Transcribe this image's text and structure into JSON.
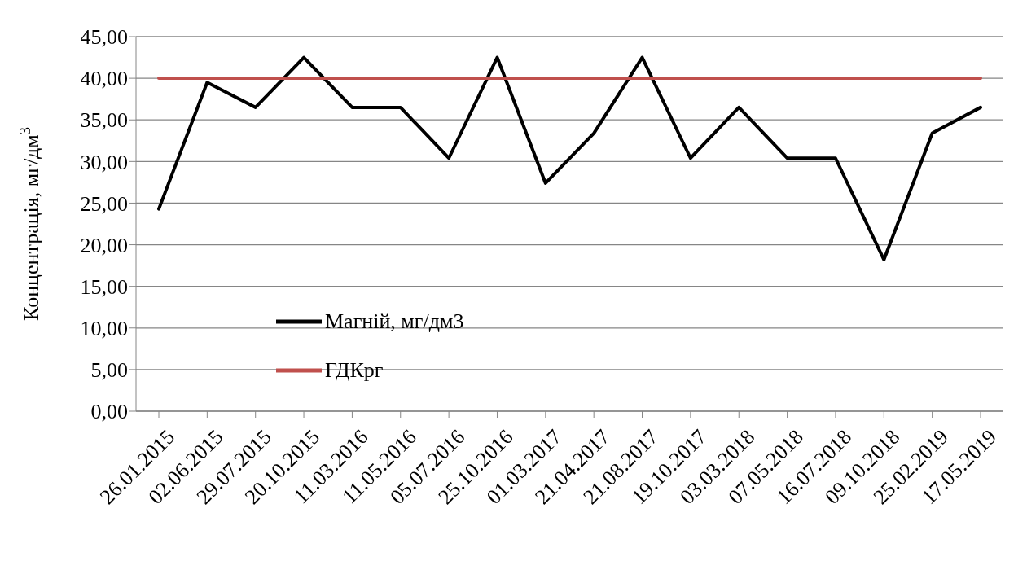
{
  "chart_data": {
    "type": "line",
    "ylabel": "Концентрація, мг/дм$^{3}$",
    "categories": [
      "26.01.2015",
      "02.06.2015",
      "29.07.2015",
      "20.10.2015",
      "11.03.2016",
      "11.05.2016",
      "05.07.2016",
      "25.10.2016",
      "01.03.2017",
      "21.04.2017",
      "21.08.2017",
      "19.10.2017",
      "03.03.2018",
      "07.05.2018",
      "16.07.2018",
      "09.10.2018",
      "25.02.2019",
      "17.05.2019"
    ],
    "series": [
      {
        "name": "Магній, мг/дм3",
        "color": "#000000",
        "values": [
          24.3,
          39.5,
          36.5,
          42.5,
          36.5,
          36.5,
          30.4,
          42.5,
          27.4,
          33.4,
          42.5,
          30.4,
          36.5,
          30.4,
          30.4,
          18.2,
          33.4,
          36.5
        ]
      },
      {
        "name": "ГДКрг",
        "color": "#c0504d",
        "values": [
          40,
          40,
          40,
          40,
          40,
          40,
          40,
          40,
          40,
          40,
          40,
          40,
          40,
          40,
          40,
          40,
          40,
          40
        ]
      }
    ],
    "ylim": [
      0,
      45
    ],
    "yticks": [
      {
        "value": 0,
        "label": "0,00"
      },
      {
        "value": 5,
        "label": "5,00"
      },
      {
        "value": 10,
        "label": "10,00"
      },
      {
        "value": 15,
        "label": "15,00"
      },
      {
        "value": 20,
        "label": "20,00"
      },
      {
        "value": 25,
        "label": "25,00"
      },
      {
        "value": 30,
        "label": "30,00"
      },
      {
        "value": 35,
        "label": "35,00"
      },
      {
        "value": 40,
        "label": "40,00"
      },
      {
        "value": 45,
        "label": "45,00"
      }
    ],
    "grid": "y",
    "legend": "bottom left",
    "marker": "none",
    "line_style": "solid"
  }
}
